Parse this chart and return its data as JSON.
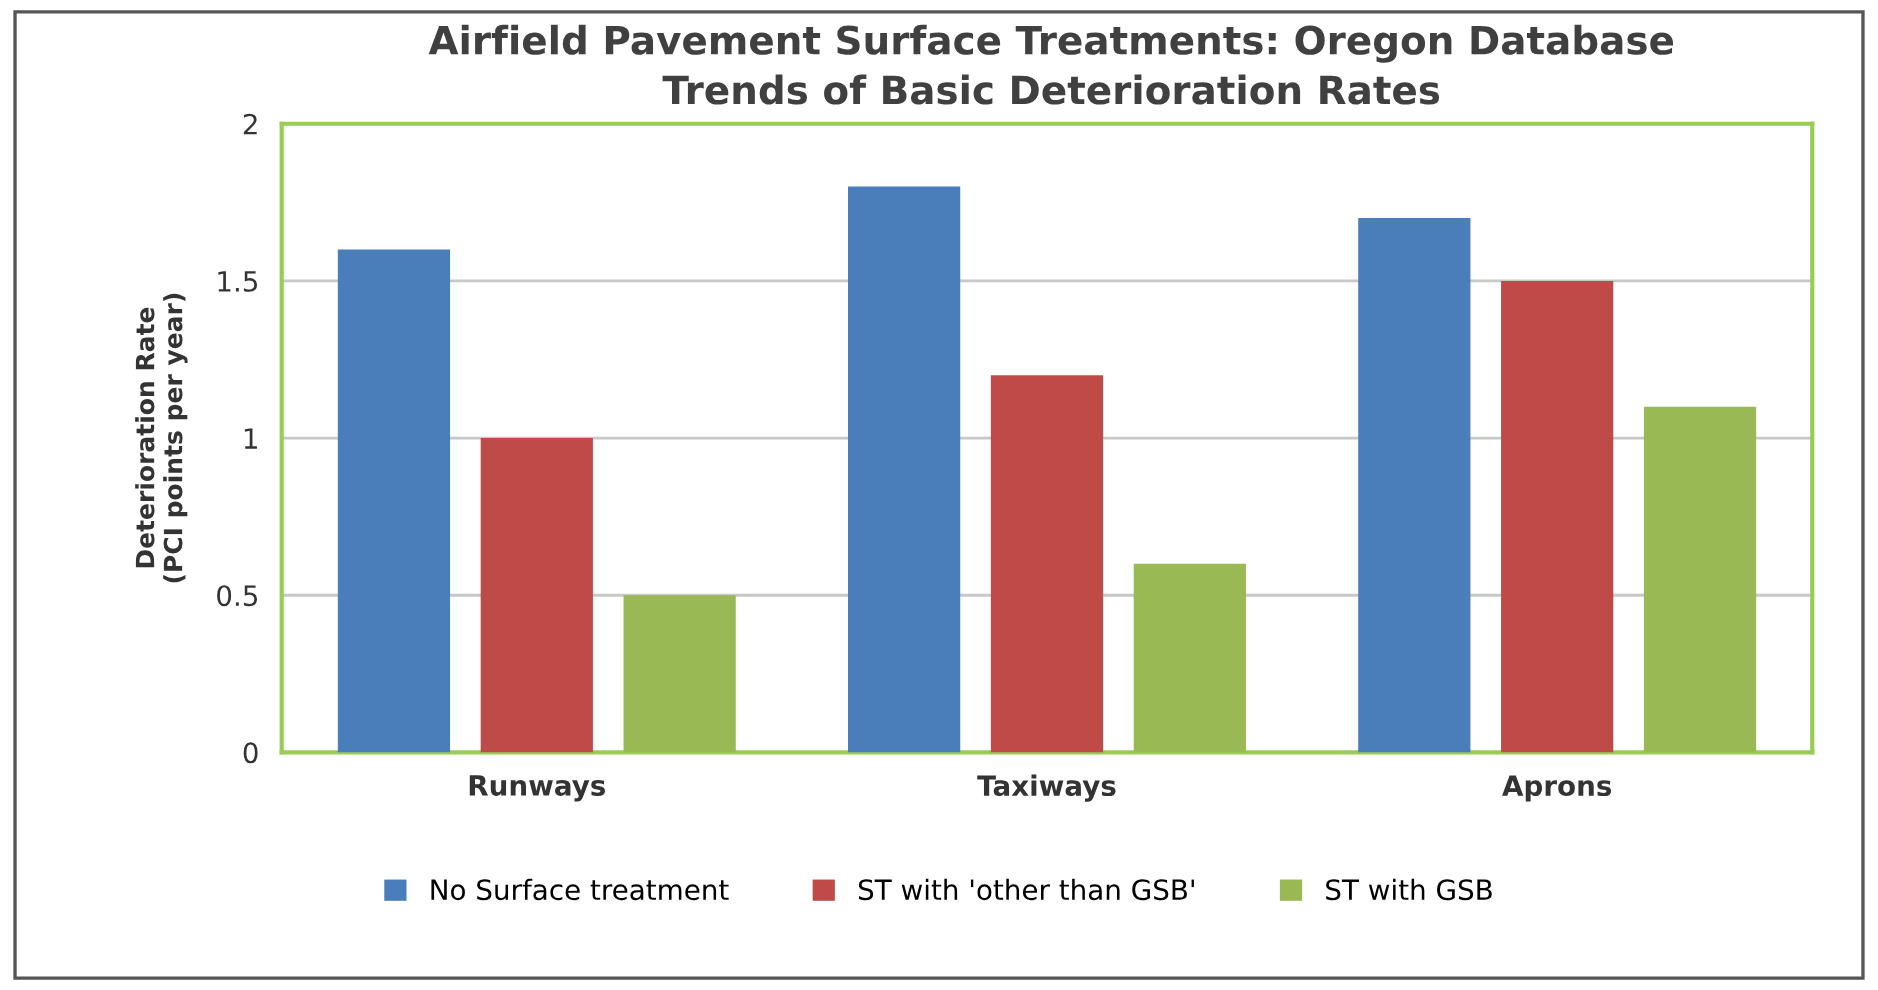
{
  "chart_data": {
    "type": "bar",
    "title": "Airfield Pavement Surface Treatments: Oregon Database\nTrends of Basic Deterioration Rates",
    "ylabel": "Deterioration Rate\n(PCI points per year)",
    "categories": [
      "Runways",
      "Taxiways",
      "Aprons"
    ],
    "series": [
      {
        "name": "No Surface treatment",
        "color": "#4a7ebb",
        "values": [
          1.6,
          1.8,
          1.7
        ]
      },
      {
        "name": "ST with 'other than GSB'",
        "color": "#be4b48",
        "values": [
          1.0,
          1.2,
          1.5
        ]
      },
      {
        "name": "ST with GSB",
        "color": "#98b954",
        "values": [
          0.5,
          0.6,
          1.1
        ]
      }
    ],
    "ylim": [
      0,
      2
    ],
    "yticks": [
      0,
      0.5,
      1,
      1.5,
      2
    ],
    "grid": "y",
    "legend": "bottom"
  }
}
